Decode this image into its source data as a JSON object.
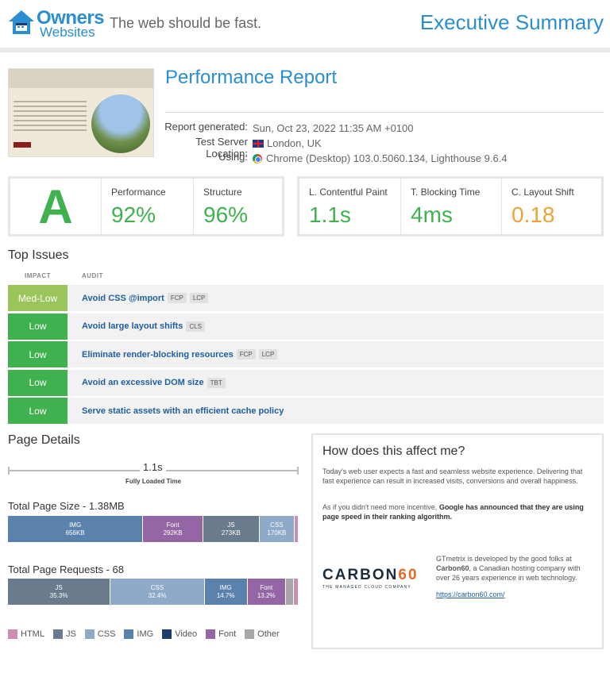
{
  "header": {
    "logo_line1": "Owners",
    "logo_line2": "Websites",
    "tagline": "The web should be fast.",
    "title": "Executive Summary"
  },
  "report": {
    "title": "Performance Report",
    "meta": [
      {
        "key": "Report generated:",
        "value": "Sun, Oct 23, 2022 11:35 AM +0100"
      },
      {
        "key": "Test Server Location:",
        "value": "London, UK"
      },
      {
        "key": "Using:",
        "value": "Chrome (Desktop) 103.0.5060.134, Lighthouse 9.6.4"
      }
    ]
  },
  "scores": {
    "grade": "A",
    "performance_label": "Performance",
    "performance_value": "92%",
    "structure_label": "Structure",
    "structure_value": "96%",
    "lcp_label": "L. Contentful Paint",
    "lcp_value": "1.1s",
    "tbt_label": "T. Blocking Time",
    "tbt_value": "4ms",
    "cls_label": "C. Layout Shift",
    "cls_value": "0.18",
    "colors": {
      "good": "#3fb24f",
      "warn": "#f0a23a"
    }
  },
  "top_issues": {
    "title": "Top Issues",
    "col_impact": "IMPACT",
    "col_audit": "AUDIT",
    "items": [
      {
        "impact": "Med-Low",
        "audit": "Avoid CSS @import",
        "tags": [
          "FCP",
          "LCP"
        ],
        "color": "#9bc45a"
      },
      {
        "impact": "Low",
        "audit": "Avoid large layout shifts",
        "tags": [
          "CLS"
        ],
        "color": "#3fb24f"
      },
      {
        "impact": "Low",
        "audit": "Eliminate render-blocking resources",
        "tags": [
          "FCP",
          "LCP"
        ],
        "color": "#3fb24f"
      },
      {
        "impact": "Low",
        "audit": "Avoid an excessive DOM size",
        "tags": [
          "TBT"
        ],
        "color": "#3fb24f"
      },
      {
        "impact": "Low",
        "audit": "Serve static assets with an efficient cache policy",
        "tags": [],
        "color": "#3fb24f"
      }
    ]
  },
  "page_details": {
    "title": "Page Details",
    "fully_loaded_value": "1.1s",
    "fully_loaded_label": "Fully Loaded Time",
    "size_title": "Total Page Size - 1.38MB",
    "size_segments": [
      {
        "label": "IMG",
        "sub": "656KB",
        "share": 47.5,
        "color": "#5b82ac"
      },
      {
        "label": "Font",
        "sub": "292KB",
        "share": 21.1,
        "color": "#9466a3"
      },
      {
        "label": "JS",
        "sub": "273KB",
        "share": 19.8,
        "color": "#6a7b8d"
      },
      {
        "label": "CSS",
        "sub": "170KB",
        "share": 12.3,
        "color": "#8fa9c8"
      },
      {
        "label": "",
        "sub": "",
        "share": 1.4,
        "color": "#cc8fb4"
      }
    ],
    "requests_title": "Total Page Requests - 68",
    "request_segments": [
      {
        "label": "JS",
        "sub": "35.3%",
        "share": 35.3,
        "color": "#6a7b8d"
      },
      {
        "label": "CSS",
        "sub": "32.4%",
        "share": 32.4,
        "color": "#8fa9c8"
      },
      {
        "label": "IMG",
        "sub": "14.7%",
        "share": 14.7,
        "color": "#5b82ac"
      },
      {
        "label": "Font",
        "sub": "13.2%",
        "share": 13.2,
        "color": "#9466a3"
      },
      {
        "label": "",
        "sub": "",
        "share": 2.9,
        "color": "#a7a7a7"
      },
      {
        "label": "",
        "sub": "",
        "share": 1.5,
        "color": "#cc8fb4"
      }
    ],
    "legend": [
      {
        "label": "HTML",
        "color": "#cc8fb4"
      },
      {
        "label": "JS",
        "color": "#6a7b8d"
      },
      {
        "label": "CSS",
        "color": "#8fa9c8"
      },
      {
        "label": "IMG",
        "color": "#5b82ac"
      },
      {
        "label": "Video",
        "color": "#1d3c6b"
      },
      {
        "label": "Font",
        "color": "#9466a3"
      },
      {
        "label": "Other",
        "color": "#a7a7a7"
      }
    ]
  },
  "affect": {
    "title": "How does this affect me?",
    "p1": "Today's web user expects a fast and seamless website experience. Delivering that fast experience can result in increased visits, conversions and overall happiness.",
    "p2_pre": "As if you didn't need more incentive, ",
    "p2_bold": "Google has announced that they are using page speed in their ranking algorithm.",
    "carbon_word": "CARBON",
    "carbon_num": "60",
    "carbon_sub": "THE MANAGED CLOUD COMPANY",
    "p3_pre": "GTmetrix is developed by the good folks at ",
    "p3_bold": "Carbon60",
    "p3_post": ", a Canadian hosting company with over 26 years experience in web technology.",
    "link": "https://carbon60.com/"
  }
}
